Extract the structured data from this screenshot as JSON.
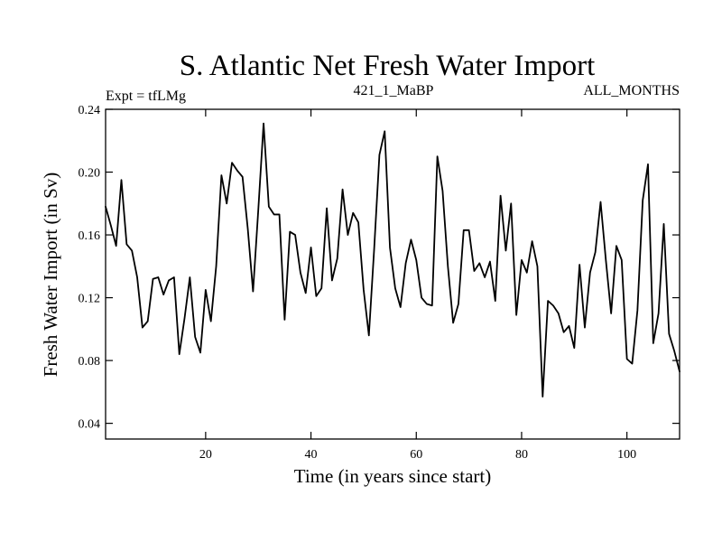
{
  "chart_data": {
    "type": "line",
    "title": "S. Atlantic Net Fresh Water Import",
    "subtitle_left": "Expt = tfLMg",
    "subtitle_center": "421_1_MaBP",
    "subtitle_right": "ALL_MONTHS",
    "xlabel": "Time (in years since start)",
    "ylabel": "Fresh Water Import (in Sv)",
    "xlim": [
      1,
      110
    ],
    "ylim": [
      0.03,
      0.24
    ],
    "xticks": [
      20,
      40,
      60,
      80,
      100
    ],
    "yticks": [
      0.04,
      0.08,
      0.12,
      0.16,
      0.2,
      0.24
    ],
    "xtick_labels": [
      "20",
      "40",
      "60",
      "80",
      "100"
    ],
    "ytick_labels": [
      "0.04",
      "0.08",
      "0.12",
      "0.16",
      "0.20",
      "0.24"
    ],
    "grid": false,
    "series": [
      {
        "name": "Fresh Water Import",
        "color": "#000000",
        "x": [
          1,
          2,
          3,
          4,
          5,
          6,
          7,
          8,
          9,
          10,
          11,
          12,
          13,
          14,
          15,
          16,
          17,
          18,
          19,
          20,
          21,
          22,
          23,
          24,
          25,
          26,
          27,
          28,
          29,
          30,
          31,
          32,
          33,
          34,
          35,
          36,
          37,
          38,
          39,
          40,
          41,
          42,
          43,
          44,
          45,
          46,
          47,
          48,
          49,
          50,
          51,
          52,
          53,
          54,
          55,
          56,
          57,
          58,
          59,
          60,
          61,
          62,
          63,
          64,
          65,
          66,
          67,
          68,
          69,
          70,
          71,
          72,
          73,
          74,
          75,
          76,
          77,
          78,
          79,
          80,
          81,
          82,
          83,
          84,
          85,
          86,
          87,
          88,
          89,
          90,
          91,
          92,
          93,
          94,
          95,
          96,
          97,
          98,
          99,
          100,
          101,
          102,
          103,
          104,
          105,
          106,
          107,
          108,
          109,
          110
        ],
        "values": [
          0.178,
          0.166,
          0.153,
          0.195,
          0.154,
          0.15,
          0.133,
          0.101,
          0.105,
          0.132,
          0.133,
          0.122,
          0.131,
          0.133,
          0.084,
          0.107,
          0.133,
          0.095,
          0.085,
          0.125,
          0.105,
          0.14,
          0.198,
          0.18,
          0.206,
          0.201,
          0.197,
          0.164,
          0.124,
          0.176,
          0.231,
          0.178,
          0.173,
          0.173,
          0.106,
          0.162,
          0.16,
          0.136,
          0.123,
          0.152,
          0.121,
          0.126,
          0.177,
          0.131,
          0.145,
          0.189,
          0.16,
          0.174,
          0.168,
          0.125,
          0.096,
          0.151,
          0.211,
          0.226,
          0.152,
          0.126,
          0.114,
          0.142,
          0.157,
          0.144,
          0.12,
          0.116,
          0.115,
          0.21,
          0.188,
          0.14,
          0.104,
          0.116,
          0.163,
          0.163,
          0.137,
          0.142,
          0.133,
          0.143,
          0.118,
          0.185,
          0.15,
          0.18,
          0.109,
          0.144,
          0.136,
          0.156,
          0.14,
          0.057,
          0.118,
          0.115,
          0.11,
          0.098,
          0.102,
          0.088,
          0.141,
          0.101,
          0.136,
          0.149,
          0.181,
          0.144,
          0.11,
          0.153,
          0.144,
          0.081,
          0.078,
          0.112,
          0.182,
          0.205,
          0.091,
          0.11,
          0.167,
          0.097,
          0.086,
          0.073
        ]
      }
    ]
  }
}
